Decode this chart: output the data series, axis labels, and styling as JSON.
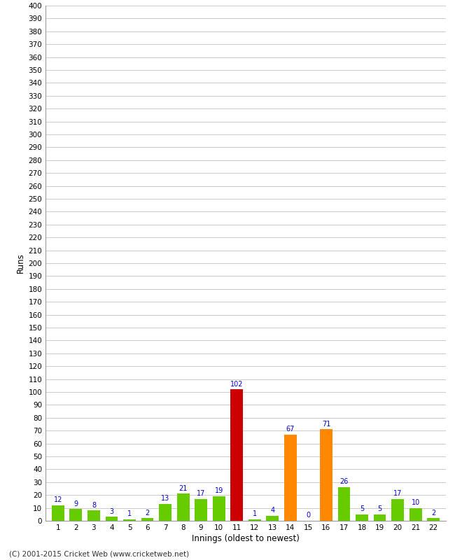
{
  "xlabel": "Innings (oldest to newest)",
  "ylabel": "Runs",
  "innings": [
    1,
    2,
    3,
    4,
    5,
    6,
    7,
    8,
    9,
    10,
    11,
    12,
    13,
    14,
    15,
    16,
    17,
    18,
    19,
    20,
    21,
    22
  ],
  "values": [
    12,
    9,
    8,
    3,
    1,
    2,
    13,
    21,
    17,
    19,
    102,
    1,
    4,
    67,
    0,
    71,
    26,
    5,
    5,
    17,
    10,
    2
  ],
  "colors": [
    "#66cc00",
    "#66cc00",
    "#66cc00",
    "#66cc00",
    "#66cc00",
    "#66cc00",
    "#66cc00",
    "#66cc00",
    "#66cc00",
    "#66cc00",
    "#cc0000",
    "#66cc00",
    "#66cc00",
    "#ff8800",
    "#66cc00",
    "#ff8800",
    "#66cc00",
    "#66cc00",
    "#66cc00",
    "#66cc00",
    "#66cc00",
    "#66cc00"
  ],
  "ylim": [
    0,
    400
  ],
  "ytick_step": 10,
  "label_color": "#0000cc",
  "background_color": "#ffffff",
  "grid_color": "#cccccc",
  "footer": "(C) 2001-2015 Cricket Web (www.cricketweb.net)"
}
